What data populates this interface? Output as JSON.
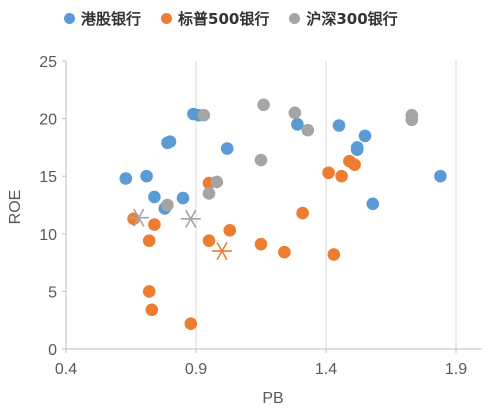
{
  "chart_data": {
    "type": "scatter",
    "xlabel": "PB",
    "ylabel": "ROE",
    "xlim": [
      0.4,
      2.0
    ],
    "ylim": [
      0,
      25
    ],
    "xticks": [
      0.4,
      0.9,
      1.4,
      1.9
    ],
    "yticks": [
      0,
      5,
      10,
      15,
      20,
      25
    ],
    "grid": "vertical",
    "legend_position": "top",
    "series": [
      {
        "name": "港股银行",
        "color": "#5B9BD5",
        "marker": "circle",
        "points": [
          [
            0.63,
            14.8
          ],
          [
            0.71,
            15.0
          ],
          [
            0.74,
            13.2
          ],
          [
            0.78,
            12.2
          ],
          [
            0.79,
            17.9
          ],
          [
            0.8,
            18.0
          ],
          [
            0.85,
            13.1
          ],
          [
            0.89,
            20.4
          ],
          [
            0.91,
            20.3
          ],
          [
            1.02,
            17.4
          ],
          [
            1.29,
            19.5
          ],
          [
            1.45,
            19.4
          ],
          [
            1.52,
            17.5
          ],
          [
            1.52,
            17.3
          ],
          [
            1.55,
            18.5
          ],
          [
            1.58,
            12.6
          ],
          [
            1.84,
            15.0
          ]
        ]
      },
      {
        "name": "标普500银行",
        "color": "#ED7D31",
        "marker": "circle",
        "points": [
          [
            0.66,
            11.3
          ],
          [
            0.72,
            9.4
          ],
          [
            0.72,
            5.0
          ],
          [
            0.73,
            3.4
          ],
          [
            0.74,
            10.8
          ],
          [
            0.88,
            2.2
          ],
          [
            0.95,
            9.4
          ],
          [
            0.95,
            14.4
          ],
          [
            1.03,
            10.3
          ],
          [
            1.15,
            9.1
          ],
          [
            1.24,
            8.4
          ],
          [
            1.31,
            11.8
          ],
          [
            1.41,
            15.3
          ],
          [
            1.43,
            8.2
          ],
          [
            1.46,
            15.0
          ],
          [
            1.49,
            16.3
          ],
          [
            1.51,
            16.0
          ]
        ]
      },
      {
        "name": "沪深300银行",
        "color": "#A5A5A5",
        "marker": "circle",
        "points": [
          [
            0.79,
            12.5
          ],
          [
            0.93,
            20.3
          ],
          [
            0.95,
            13.5
          ],
          [
            0.98,
            14.5
          ],
          [
            1.15,
            16.4
          ],
          [
            1.16,
            21.2
          ],
          [
            1.28,
            20.5
          ],
          [
            1.33,
            19.0
          ],
          [
            1.73,
            20.3
          ],
          [
            1.73,
            19.9
          ]
        ]
      },
      {
        "name": "",
        "color": "#A5A5A5",
        "marker": "star",
        "points": [
          [
            0.68,
            11.4
          ],
          [
            0.88,
            11.3
          ]
        ]
      },
      {
        "name": "",
        "color": "#ED7D31",
        "marker": "star",
        "points": [
          [
            1.0,
            8.5
          ]
        ]
      }
    ]
  }
}
